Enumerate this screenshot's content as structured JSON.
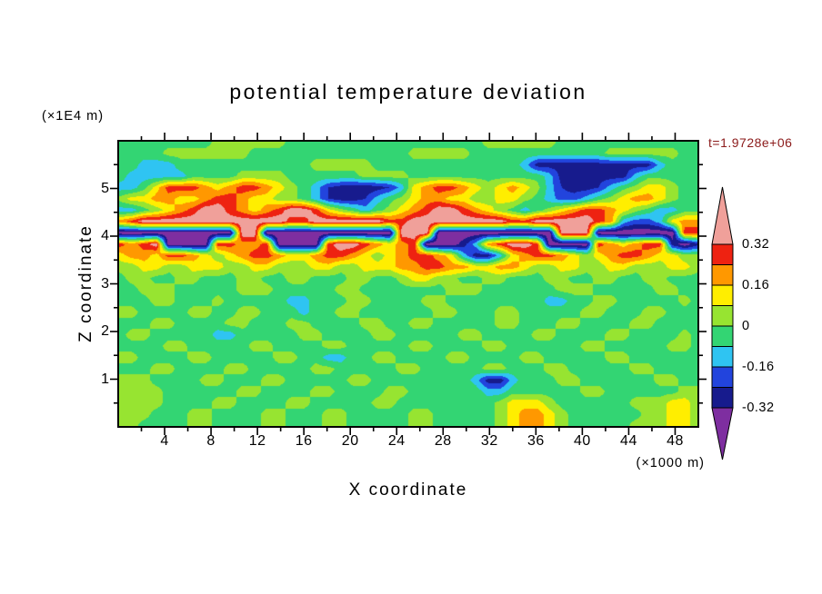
{
  "title": "potential temperature deviation",
  "timestamp": "t=1.9728e+06",
  "axes": {
    "x_label": "X coordinate",
    "x_unit": "(×1000 m)",
    "x_ticks": [
      4,
      8,
      12,
      16,
      20,
      24,
      28,
      32,
      36,
      40,
      44,
      48
    ],
    "x_minor_step": 2,
    "x_range": [
      0,
      50
    ],
    "y_label": "Z coordinate",
    "y_unit": "(×1E4 m)",
    "y_ticks": [
      1,
      2,
      3,
      4,
      5
    ],
    "y_minor_step": 0.5,
    "y_range": [
      0,
      6
    ]
  },
  "colorbar": {
    "tick_labels": [
      "0.32",
      "0.16",
      "0",
      "-0.16",
      "-0.32"
    ],
    "tick_values": [
      0.32,
      0.16,
      0,
      -0.16,
      -0.32
    ]
  },
  "colors": {
    "text": "#000000",
    "frame": "#000000",
    "timestamp": "#8b1a1a"
  },
  "chart_data": {
    "type": "heatmap",
    "title": "potential temperature deviation",
    "xlabel": "X coordinate (×1000 m)",
    "ylabel": "Z coordinate (×1E4 m)",
    "time_label": "t=1.9728e+06",
    "x_range": [
      0,
      50
    ],
    "z_range": [
      0,
      6
    ],
    "levels": [
      -0.32,
      -0.24,
      -0.16,
      -0.08,
      0,
      0.08,
      0.16,
      0.24,
      0.32
    ],
    "band_colors": [
      "#7e2ea0",
      "#171b8d",
      "#2244dd",
      "#2fc4f2",
      "#33d573",
      "#97e431",
      "#ffee00",
      "#ff9800",
      "#ee2211",
      "#f0a09a"
    ],
    "value_scale": 0.01,
    "grid_order": "rows from z=6 (top) to z=0 (bottom), 48 columns spanning x=0..50",
    "grid": [
      [
        -3,
        -3,
        -3,
        -3,
        -3,
        -3,
        -3,
        -3,
        3,
        3,
        3,
        3,
        3,
        3,
        -3,
        -3,
        -3,
        -3,
        -3,
        -3,
        -3,
        -3,
        -3,
        -3,
        -3,
        -3,
        -3,
        -3,
        -3,
        -3,
        3,
        3,
        3,
        3,
        3,
        3,
        -3,
        -3,
        -3,
        -3,
        -3,
        -3,
        -3,
        -3,
        -3,
        -3,
        -3,
        -3
      ],
      [
        -3,
        -3,
        -3,
        -3,
        3,
        3,
        3,
        3,
        3,
        3,
        3,
        -3,
        -3,
        -3,
        -3,
        -3,
        -3,
        -3,
        -3,
        -3,
        -3,
        -3,
        -3,
        -3,
        3,
        3,
        3,
        3,
        3,
        -3,
        -3,
        -3,
        -3,
        -3,
        -3,
        -3,
        -3,
        -3,
        -3,
        -3,
        3,
        3,
        3,
        3,
        3,
        3,
        -3,
        -3
      ],
      [
        -3,
        -3,
        -12,
        -12,
        -12,
        -3,
        -3,
        -3,
        -3,
        -3,
        -3,
        -3,
        -3,
        -3,
        -3,
        -3,
        3,
        3,
        3,
        3,
        3,
        -3,
        -3,
        -3,
        -3,
        -3,
        -3,
        -3,
        -3,
        -3,
        -3,
        -3,
        -3,
        -12,
        -28,
        -28,
        -28,
        -28,
        -28,
        -28,
        -28,
        -28,
        -28,
        -28,
        -12,
        -3,
        -3,
        -3
      ],
      [
        -3,
        -12,
        -12,
        -12,
        -12,
        -12,
        -3,
        -3,
        -3,
        -3,
        3,
        3,
        3,
        3,
        -3,
        -3,
        -3,
        -3,
        -3,
        -3,
        3,
        3,
        3,
        3,
        -3,
        -3,
        -3,
        -3,
        -3,
        -3,
        -3,
        -3,
        -3,
        -3,
        -3,
        -12,
        -28,
        -28,
        -28,
        -28,
        -28,
        -28,
        -12,
        -3,
        -3,
        -3,
        -3,
        -3
      ],
      [
        -12,
        -12,
        -3,
        12,
        28,
        28,
        28,
        20,
        12,
        20,
        28,
        28,
        20,
        12,
        3,
        -3,
        -12,
        -24,
        -28,
        -30,
        -30,
        -28,
        -24,
        -12,
        12,
        20,
        28,
        28,
        20,
        12,
        3,
        12,
        20,
        12,
        3,
        -12,
        -24,
        -28,
        -28,
        -24,
        -12,
        -3,
        3,
        12,
        12,
        3,
        -3,
        -3
      ],
      [
        3,
        12,
        12,
        20,
        20,
        12,
        12,
        20,
        28,
        28,
        20,
        12,
        12,
        3,
        3,
        -3,
        -12,
        -24,
        -28,
        -28,
        -24,
        -12,
        -3,
        3,
        12,
        20,
        20,
        12,
        12,
        3,
        3,
        12,
        12,
        3,
        -3,
        -12,
        -20,
        -20,
        -12,
        -3,
        3,
        12,
        20,
        20,
        12,
        3,
        -3,
        -3
      ],
      [
        -12,
        -12,
        -3,
        3,
        12,
        20,
        28,
        38,
        38,
        28,
        20,
        12,
        20,
        28,
        38,
        38,
        28,
        12,
        3,
        -3,
        -12,
        -3,
        3,
        12,
        20,
        28,
        38,
        38,
        28,
        20,
        12,
        3,
        -3,
        -12,
        -3,
        3,
        12,
        20,
        28,
        28,
        20,
        12,
        3,
        -3,
        -12,
        -12,
        -3,
        -3
      ],
      [
        20,
        28,
        38,
        38,
        38,
        38,
        38,
        38,
        38,
        38,
        38,
        38,
        38,
        38,
        28,
        28,
        38,
        38,
        38,
        38,
        38,
        38,
        28,
        28,
        38,
        38,
        38,
        38,
        38,
        38,
        38,
        38,
        28,
        28,
        38,
        38,
        38,
        38,
        38,
        28,
        20,
        -12,
        -20,
        -20,
        -12,
        12,
        20,
        20
      ],
      [
        -38,
        -38,
        -38,
        -38,
        -38,
        -38,
        -38,
        -38,
        -38,
        -38,
        38,
        38,
        -38,
        -38,
        -38,
        -38,
        -38,
        -38,
        -38,
        -38,
        -38,
        -38,
        -38,
        38,
        38,
        38,
        -38,
        -38,
        -38,
        -38,
        -38,
        -38,
        -38,
        -38,
        -38,
        -38,
        38,
        38,
        38,
        -38,
        -38,
        -38,
        -38,
        -38,
        -38,
        -38,
        28,
        28
      ],
      [
        28,
        20,
        28,
        38,
        -38,
        -38,
        -38,
        -38,
        28,
        28,
        20,
        20,
        28,
        -38,
        -38,
        -38,
        -38,
        28,
        38,
        38,
        28,
        20,
        12,
        20,
        28,
        -38,
        -38,
        -38,
        -28,
        -12,
        20,
        28,
        38,
        38,
        28,
        -38,
        -38,
        -38,
        -38,
        28,
        20,
        12,
        20,
        28,
        28,
        -28,
        -38,
        -28
      ],
      [
        12,
        20,
        20,
        12,
        28,
        28,
        20,
        12,
        3,
        12,
        20,
        28,
        28,
        20,
        12,
        12,
        20,
        28,
        28,
        20,
        12,
        3,
        12,
        20,
        28,
        28,
        20,
        12,
        -12,
        -28,
        -28,
        -12,
        12,
        20,
        28,
        28,
        20,
        12,
        3,
        12,
        20,
        28,
        28,
        20,
        12,
        12,
        3,
        3
      ],
      [
        3,
        3,
        12,
        12,
        3,
        3,
        12,
        12,
        12,
        3,
        3,
        12,
        12,
        3,
        3,
        3,
        12,
        12,
        3,
        3,
        12,
        12,
        12,
        20,
        20,
        28,
        28,
        20,
        20,
        12,
        12,
        20,
        20,
        12,
        3,
        3,
        12,
        12,
        3,
        3,
        12,
        12,
        3,
        3,
        3,
        12,
        12,
        3
      ],
      [
        -3,
        3,
        3,
        -3,
        -3,
        3,
        3,
        -3,
        -3,
        -3,
        3,
        3,
        -3,
        -3,
        3,
        3,
        -3,
        -3,
        -3,
        3,
        3,
        -3,
        -3,
        3,
        12,
        12,
        3,
        3,
        -3,
        -3,
        3,
        3,
        -3,
        -3,
        -3,
        3,
        3,
        -3,
        -3,
        3,
        3,
        -3,
        -3,
        3,
        3,
        -3,
        -3,
        -3
      ],
      [
        -3,
        -3,
        3,
        3,
        3,
        -3,
        -3,
        -3,
        -3,
        -3,
        3,
        3,
        3,
        -3,
        -3,
        -3,
        -3,
        -3,
        3,
        3,
        -3,
        -3,
        -3,
        -3,
        -3,
        -3,
        -3,
        3,
        3,
        3,
        -3,
        -3,
        -3,
        -3,
        -3,
        -3,
        3,
        3,
        3,
        -3,
        -3,
        -3,
        -3,
        -3,
        3,
        3,
        -3,
        -3
      ],
      [
        -3,
        -3,
        -3,
        3,
        3,
        -3,
        -3,
        -3,
        3,
        -3,
        -3,
        -3,
        -3,
        -3,
        -12,
        -12,
        -3,
        -3,
        -3,
        3,
        3,
        -3,
        -3,
        -3,
        -3,
        3,
        3,
        -3,
        -3,
        -3,
        -3,
        -3,
        -3,
        -3,
        -3,
        -12,
        -12,
        -3,
        -3,
        3,
        3,
        -3,
        -3,
        -3,
        -3,
        -3,
        3,
        -3
      ],
      [
        3,
        3,
        -3,
        -3,
        -3,
        -3,
        3,
        3,
        -3,
        -3,
        3,
        3,
        -3,
        -3,
        -3,
        -12,
        -3,
        -3,
        3,
        3,
        -3,
        -3,
        -3,
        -3,
        -3,
        -3,
        3,
        3,
        -3,
        -3,
        -3,
        3,
        3,
        -3,
        -3,
        -3,
        -3,
        -3,
        3,
        3,
        -3,
        -3,
        -3,
        3,
        3,
        -3,
        -3,
        -3
      ],
      [
        -3,
        -3,
        -3,
        3,
        3,
        -3,
        -3,
        -3,
        -3,
        3,
        3,
        -3,
        -3,
        -3,
        3,
        3,
        -3,
        -3,
        -3,
        -3,
        3,
        3,
        -3,
        -3,
        3,
        3,
        -3,
        -3,
        -3,
        -3,
        -3,
        3,
        3,
        -3,
        -3,
        -3,
        3,
        3,
        -3,
        -3,
        -3,
        -3,
        3,
        3,
        -3,
        -3,
        -3,
        -3
      ],
      [
        -3,
        3,
        3,
        -3,
        -3,
        -3,
        -3,
        -3,
        -12,
        -12,
        -3,
        -3,
        -3,
        -3,
        -3,
        3,
        3,
        -3,
        -3,
        -3,
        -3,
        3,
        3,
        -3,
        -3,
        -3,
        -3,
        -3,
        3,
        3,
        -3,
        -3,
        -3,
        -3,
        3,
        3,
        -3,
        -3,
        -3,
        -3,
        3,
        3,
        -3,
        -3,
        -3,
        -3,
        3,
        -3
      ],
      [
        -3,
        -3,
        -3,
        -3,
        3,
        3,
        -3,
        -3,
        -3,
        -3,
        -3,
        3,
        3,
        -3,
        -3,
        -3,
        -3,
        3,
        3,
        -3,
        -3,
        -3,
        -3,
        -3,
        3,
        3,
        -3,
        -3,
        -3,
        -3,
        3,
        3,
        -3,
        -3,
        -3,
        -3,
        -3,
        -3,
        3,
        3,
        -3,
        -3,
        -3,
        -3,
        -3,
        3,
        3,
        -3
      ],
      [
        3,
        3,
        -3,
        -3,
        -3,
        -3,
        3,
        3,
        -3,
        -3,
        -3,
        -3,
        -3,
        3,
        3,
        -3,
        -3,
        -12,
        -12,
        -3,
        -3,
        3,
        3,
        -3,
        -3,
        -3,
        -3,
        3,
        3,
        -3,
        -3,
        -3,
        -3,
        3,
        3,
        -3,
        -3,
        -3,
        -3,
        -3,
        3,
        3,
        -3,
        -3,
        -3,
        -3,
        -3,
        -3
      ],
      [
        -3,
        -3,
        -3,
        3,
        3,
        -3,
        -3,
        -3,
        -3,
        3,
        3,
        -3,
        -3,
        -3,
        -3,
        -3,
        3,
        3,
        -3,
        -3,
        -3,
        -3,
        -3,
        3,
        3,
        -3,
        -3,
        -3,
        -3,
        -3,
        3,
        3,
        -3,
        -3,
        -3,
        3,
        3,
        -3,
        -3,
        -3,
        -3,
        -3,
        3,
        3,
        -3,
        -3,
        -3,
        -3
      ],
      [
        3,
        3,
        3,
        -3,
        -3,
        -3,
        -3,
        3,
        3,
        -3,
        -3,
        -3,
        3,
        3,
        -3,
        -3,
        -3,
        -3,
        -3,
        3,
        3,
        -3,
        -3,
        -3,
        -3,
        -3,
        -3,
        -3,
        -3,
        -12,
        -28,
        -28,
        -12,
        -3,
        -3,
        -3,
        3,
        3,
        -3,
        -3,
        -3,
        -3,
        -3,
        -3,
        3,
        3,
        -3,
        -3
      ],
      [
        3,
        3,
        3,
        3,
        -3,
        -3,
        -3,
        -3,
        -3,
        -3,
        3,
        3,
        -3,
        -3,
        -3,
        -3,
        3,
        3,
        -3,
        -3,
        -3,
        -3,
        3,
        3,
        -3,
        -3,
        -3,
        -3,
        -3,
        -3,
        -12,
        -12,
        -3,
        -3,
        -3,
        -3,
        -3,
        -3,
        3,
        3,
        -3,
        -3,
        -3,
        -3,
        -3,
        -3,
        3,
        3
      ],
      [
        3,
        3,
        3,
        3,
        -3,
        -3,
        -3,
        -3,
        3,
        3,
        -3,
        -3,
        -3,
        -3,
        3,
        3,
        -3,
        -3,
        -3,
        -3,
        -3,
        3,
        3,
        -3,
        -3,
        -3,
        -3,
        -3,
        -3,
        -3,
        -3,
        3,
        12,
        12,
        12,
        3,
        -3,
        -3,
        -3,
        -3,
        -3,
        -3,
        3,
        3,
        3,
        12,
        12,
        3
      ],
      [
        3,
        3,
        3,
        -3,
        -3,
        -3,
        3,
        3,
        -3,
        -3,
        -3,
        -3,
        3,
        3,
        -3,
        -3,
        -3,
        3,
        3,
        -3,
        -3,
        -3,
        -3,
        -3,
        3,
        3,
        -3,
        -3,
        -3,
        -3,
        -3,
        3,
        12,
        20,
        20,
        12,
        3,
        -3,
        -3,
        -3,
        -3,
        -3,
        -3,
        3,
        3,
        12,
        12,
        3
      ],
      [
        3,
        3,
        -3,
        -3,
        -3,
        -3,
        3,
        3,
        -3,
        -3,
        -3,
        -3,
        3,
        3,
        -3,
        -3,
        -3,
        3,
        3,
        -3,
        -3,
        -3,
        -3,
        -3,
        3,
        3,
        -3,
        -3,
        -3,
        -3,
        -3,
        3,
        12,
        20,
        20,
        12,
        3,
        -3,
        -3,
        -3,
        -3,
        -3,
        3,
        3,
        3,
        12,
        12,
        3
      ]
    ]
  }
}
